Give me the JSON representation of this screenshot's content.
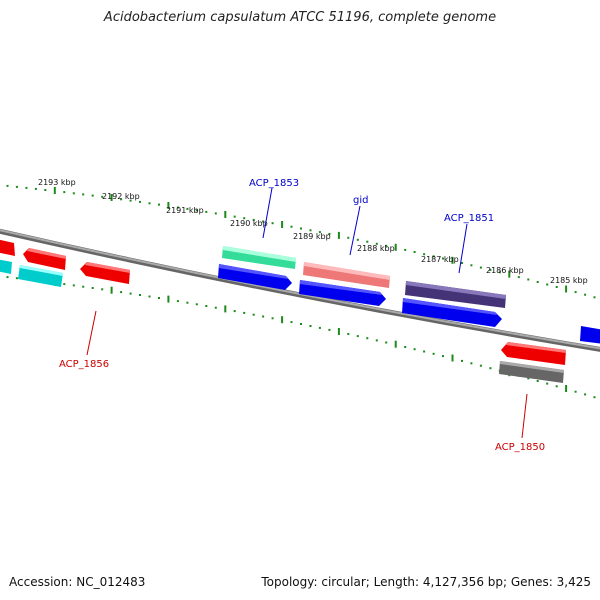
{
  "title": "Acidobacterium capsulatum ATCC 51196, complete genome",
  "footer": {
    "accession": "Accession: NC_012483",
    "summary": "Topology: circular; Length: 4,127,356 bp; Genes: 3,425"
  },
  "colors": {
    "backbone": "#8a8a8a",
    "tick": "#1a8a1a",
    "forward_label": "#0000cc",
    "reverse_label": "#cc0000",
    "scale_text": "#111111"
  },
  "scale_labels": [
    {
      "kbp": 2193,
      "label": "2193 kbp"
    },
    {
      "kbp": 2192,
      "label": "2192 kbp"
    },
    {
      "kbp": 2191,
      "label": "2191 kbp"
    },
    {
      "kbp": 2190,
      "label": "2190 kbp"
    },
    {
      "kbp": 2189,
      "label": "2189 kbp"
    },
    {
      "kbp": 2188,
      "label": "2188 kbp"
    },
    {
      "kbp": 2187,
      "label": "2187 kbp"
    },
    {
      "kbp": 2186,
      "label": "2186 kbp"
    },
    {
      "kbp": 2185,
      "label": "2185 kbp"
    }
  ],
  "gene_labels": [
    {
      "name": "ACP_1853",
      "strand": "forward"
    },
    {
      "name": "gid",
      "strand": "forward"
    },
    {
      "name": "ACP_1851",
      "strand": "forward"
    },
    {
      "name": "ACP_1856",
      "strand": "reverse"
    },
    {
      "name": "ACP_1850",
      "strand": "reverse"
    }
  ],
  "features": [
    {
      "track": "forward-cds",
      "color": "#0000ee"
    },
    {
      "track": "forward-gene",
      "color": "#33dd99"
    },
    {
      "track": "forward-gene",
      "color": "#ee7777"
    },
    {
      "track": "forward-gene",
      "color": "#443377"
    },
    {
      "track": "reverse-cds",
      "color": "#ee0000"
    },
    {
      "track": "reverse-gene",
      "color": "#00cccc"
    },
    {
      "track": "reverse-gene",
      "color": "#666666"
    }
  ]
}
